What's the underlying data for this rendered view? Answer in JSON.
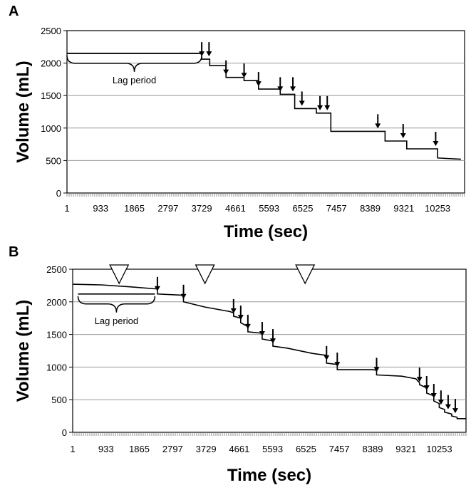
{
  "chart_data": [
    {
      "panel": "A",
      "type": "line",
      "ylabel": "Volume (mL)",
      "xlabel": "Time (sec)",
      "ylim": [
        0,
        2500
      ],
      "xlim": [
        1,
        11000
      ],
      "yticks": [
        0,
        500,
        1000,
        1500,
        2000,
        2500
      ],
      "xticks": [
        1,
        933,
        1865,
        2797,
        3729,
        4661,
        5593,
        6525,
        7457,
        8389,
        9321,
        10253
      ],
      "grid": true,
      "annotations": {
        "lag_label": "Lag period",
        "lag_x": [
          1,
          3729
        ],
        "lag_y": 2150
      },
      "arrows_x": [
        3729,
        3930,
        4400,
        4900,
        5300,
        5900,
        6250,
        6500,
        7000,
        7200,
        8600,
        9300,
        10200
      ],
      "series": [
        {
          "x": [
            1,
            3729,
            3729,
            3950,
            3950,
            4400,
            4400,
            4900,
            4900,
            5300,
            5300,
            5900,
            5900,
            6300,
            6300,
            6900,
            6900,
            7300,
            7300,
            8800,
            8800,
            9400,
            9400,
            10253,
            10253,
            10900
          ],
          "y": [
            2150,
            2150,
            2060,
            2060,
            1960,
            1960,
            1780,
            1780,
            1730,
            1730,
            1600,
            1600,
            1520,
            1520,
            1300,
            1300,
            1230,
            1230,
            950,
            950,
            800,
            800,
            680,
            680,
            540,
            520
          ]
        }
      ]
    },
    {
      "panel": "B",
      "type": "line",
      "ylabel": "Volume (mL)",
      "xlabel": "Time (sec)",
      "ylim": [
        0,
        2500
      ],
      "xlim": [
        1,
        11000
      ],
      "yticks": [
        0,
        500,
        1000,
        1500,
        2000,
        2500
      ],
      "xticks": [
        1,
        933,
        1865,
        2797,
        3729,
        4661,
        5593,
        6525,
        7457,
        8389,
        9321,
        10253
      ],
      "grid": true,
      "annotations": {
        "lag_label": "Lag period",
        "lag_x": [
          150,
          2300
        ],
        "lag_y": 2120
      },
      "triangles_x": [
        1300,
        3700,
        6500
      ],
      "arrows_x": [
        2370,
        3100,
        4500,
        4700,
        4900,
        5300,
        5600,
        7100,
        7400,
        8500,
        9700,
        9900,
        10100,
        10300,
        10500,
        10700
      ],
      "series": [
        {
          "x": [
            1,
            800,
            1600,
            2300,
            2370,
            2370,
            3100,
            3100,
            3700,
            4400,
            4500,
            4500,
            4700,
            4700,
            4900,
            4900,
            5300,
            5300,
            5600,
            5600,
            6000,
            6700,
            7100,
            7100,
            7400,
            7400,
            8400,
            8500,
            8500,
            9200,
            9600,
            9700,
            9700,
            9900,
            9900,
            10100,
            10100,
            10250,
            10250,
            10400,
            10400,
            10600,
            10600,
            10750,
            10750,
            11000
          ],
          "y": [
            2270,
            2260,
            2230,
            2200,
            2200,
            2120,
            2100,
            2000,
            1920,
            1850,
            1830,
            1780,
            1750,
            1680,
            1620,
            1540,
            1520,
            1430,
            1400,
            1320,
            1290,
            1210,
            1180,
            1060,
            1040,
            960,
            960,
            950,
            880,
            860,
            820,
            760,
            730,
            680,
            600,
            560,
            480,
            440,
            380,
            350,
            310,
            280,
            250,
            230,
            210,
            210
          ]
        }
      ]
    }
  ]
}
